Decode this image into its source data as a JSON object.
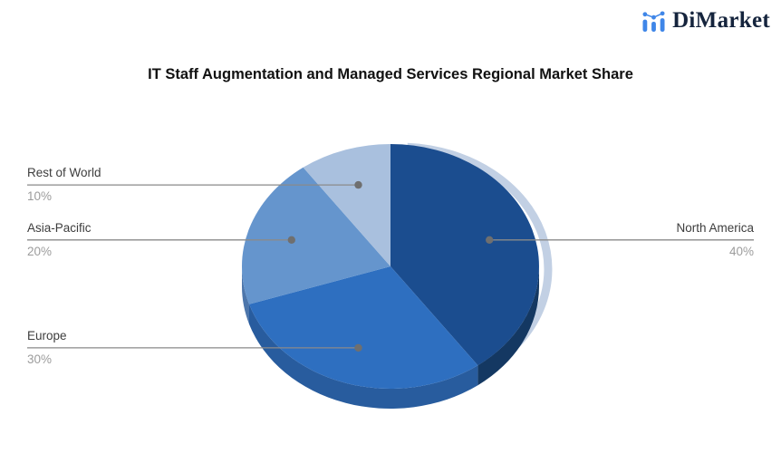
{
  "page": {
    "background": "#ffffff"
  },
  "branding": {
    "logo_text": "DiMarket",
    "logo_color": "#15243d",
    "icon": "bar-chart-logo-icon",
    "icon_color": "#3f86e8"
  },
  "chart_data": {
    "type": "pie",
    "title": "IT Staff Augmentation and Managed Services Regional Market Share",
    "title_color": "#111111",
    "start_angle_deg": 0,
    "direction": "clockwise",
    "effect_3d": true,
    "labels_style": "leader-lines",
    "legend_position": "none",
    "slices": [
      {
        "label": "North America",
        "value": 40,
        "pct_label": "40%",
        "color": "#1b4d8f",
        "side_color": "#143862"
      },
      {
        "label": "Europe",
        "value": 30,
        "pct_label": "30%",
        "color": "#2e6fc0",
        "side_color": "#285c9e"
      },
      {
        "label": "Asia-Pacific",
        "value": 20,
        "pct_label": "20%",
        "color": "#6595cd",
        "side_color": "#4d76ab"
      },
      {
        "label": "Rest of World",
        "value": 10,
        "pct_label": "10%",
        "color": "#a9c0de",
        "side_color": "#8ba6c9"
      }
    ],
    "highlight_crescent_color": "#c2d0e4",
    "leader_line_color": "#8a8a8a",
    "leader_dot_color": "#6f6f6f",
    "label_text_color": "#3d3d3d",
    "pct_text_color": "#9c9c9c"
  }
}
